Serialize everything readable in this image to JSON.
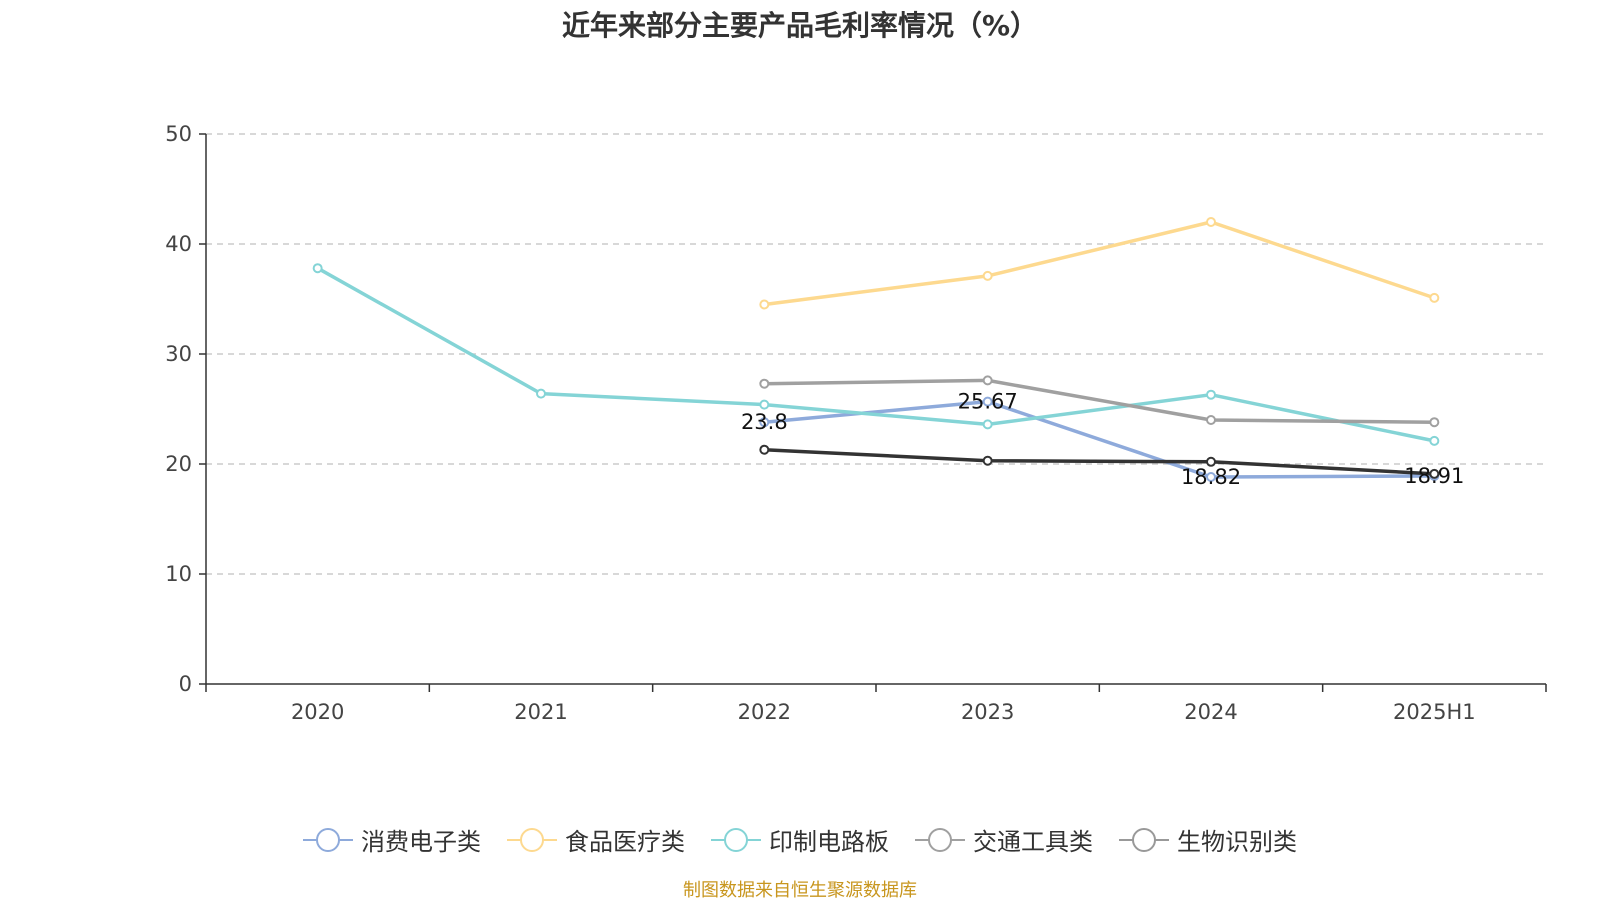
{
  "chart_data": {
    "type": "line",
    "title": "近年来部分主要产品毛利率情况（%）",
    "xlabel": "",
    "ylabel": "",
    "categories": [
      "2020",
      "2021",
      "2022",
      "2023",
      "2024",
      "2025H1"
    ],
    "ylim": [
      0,
      50
    ],
    "yticks": [
      0,
      10,
      20,
      30,
      40,
      50
    ],
    "grid": true,
    "legend_position": "bottom",
    "series": [
      {
        "name": "消费电子类",
        "color": "#8eaadb",
        "values": [
          null,
          null,
          23.8,
          25.67,
          18.82,
          18.91
        ],
        "labels": [
          null,
          null,
          "23.8",
          "25.67",
          "18.82",
          "18.91"
        ]
      },
      {
        "name": "食品医疗类",
        "color": "#fdd98f",
        "values": [
          null,
          null,
          34.5,
          37.1,
          42.0,
          35.1
        ],
        "labels": [
          null,
          null,
          null,
          null,
          null,
          null
        ]
      },
      {
        "name": "印制电路板",
        "color": "#84d4d6",
        "values": [
          37.8,
          26.4,
          25.4,
          23.6,
          26.3,
          22.1
        ],
        "labels": [
          null,
          null,
          null,
          null,
          null,
          null
        ]
      },
      {
        "name": "交通工具类",
        "color": "#a0a0a0",
        "values": [
          null,
          null,
          27.3,
          27.6,
          24.0,
          23.8
        ],
        "labels": [
          null,
          null,
          null,
          null,
          null,
          null
        ]
      },
      {
        "name": "生物识别类",
        "color": "#333333",
        "legend_color": "#999999",
        "values": [
          null,
          null,
          21.3,
          20.3,
          20.2,
          19.1
        ],
        "labels": [
          null,
          null,
          null,
          null,
          null,
          null
        ]
      }
    ]
  },
  "footer": {
    "source": "制图数据来自恒生聚源数据库"
  }
}
